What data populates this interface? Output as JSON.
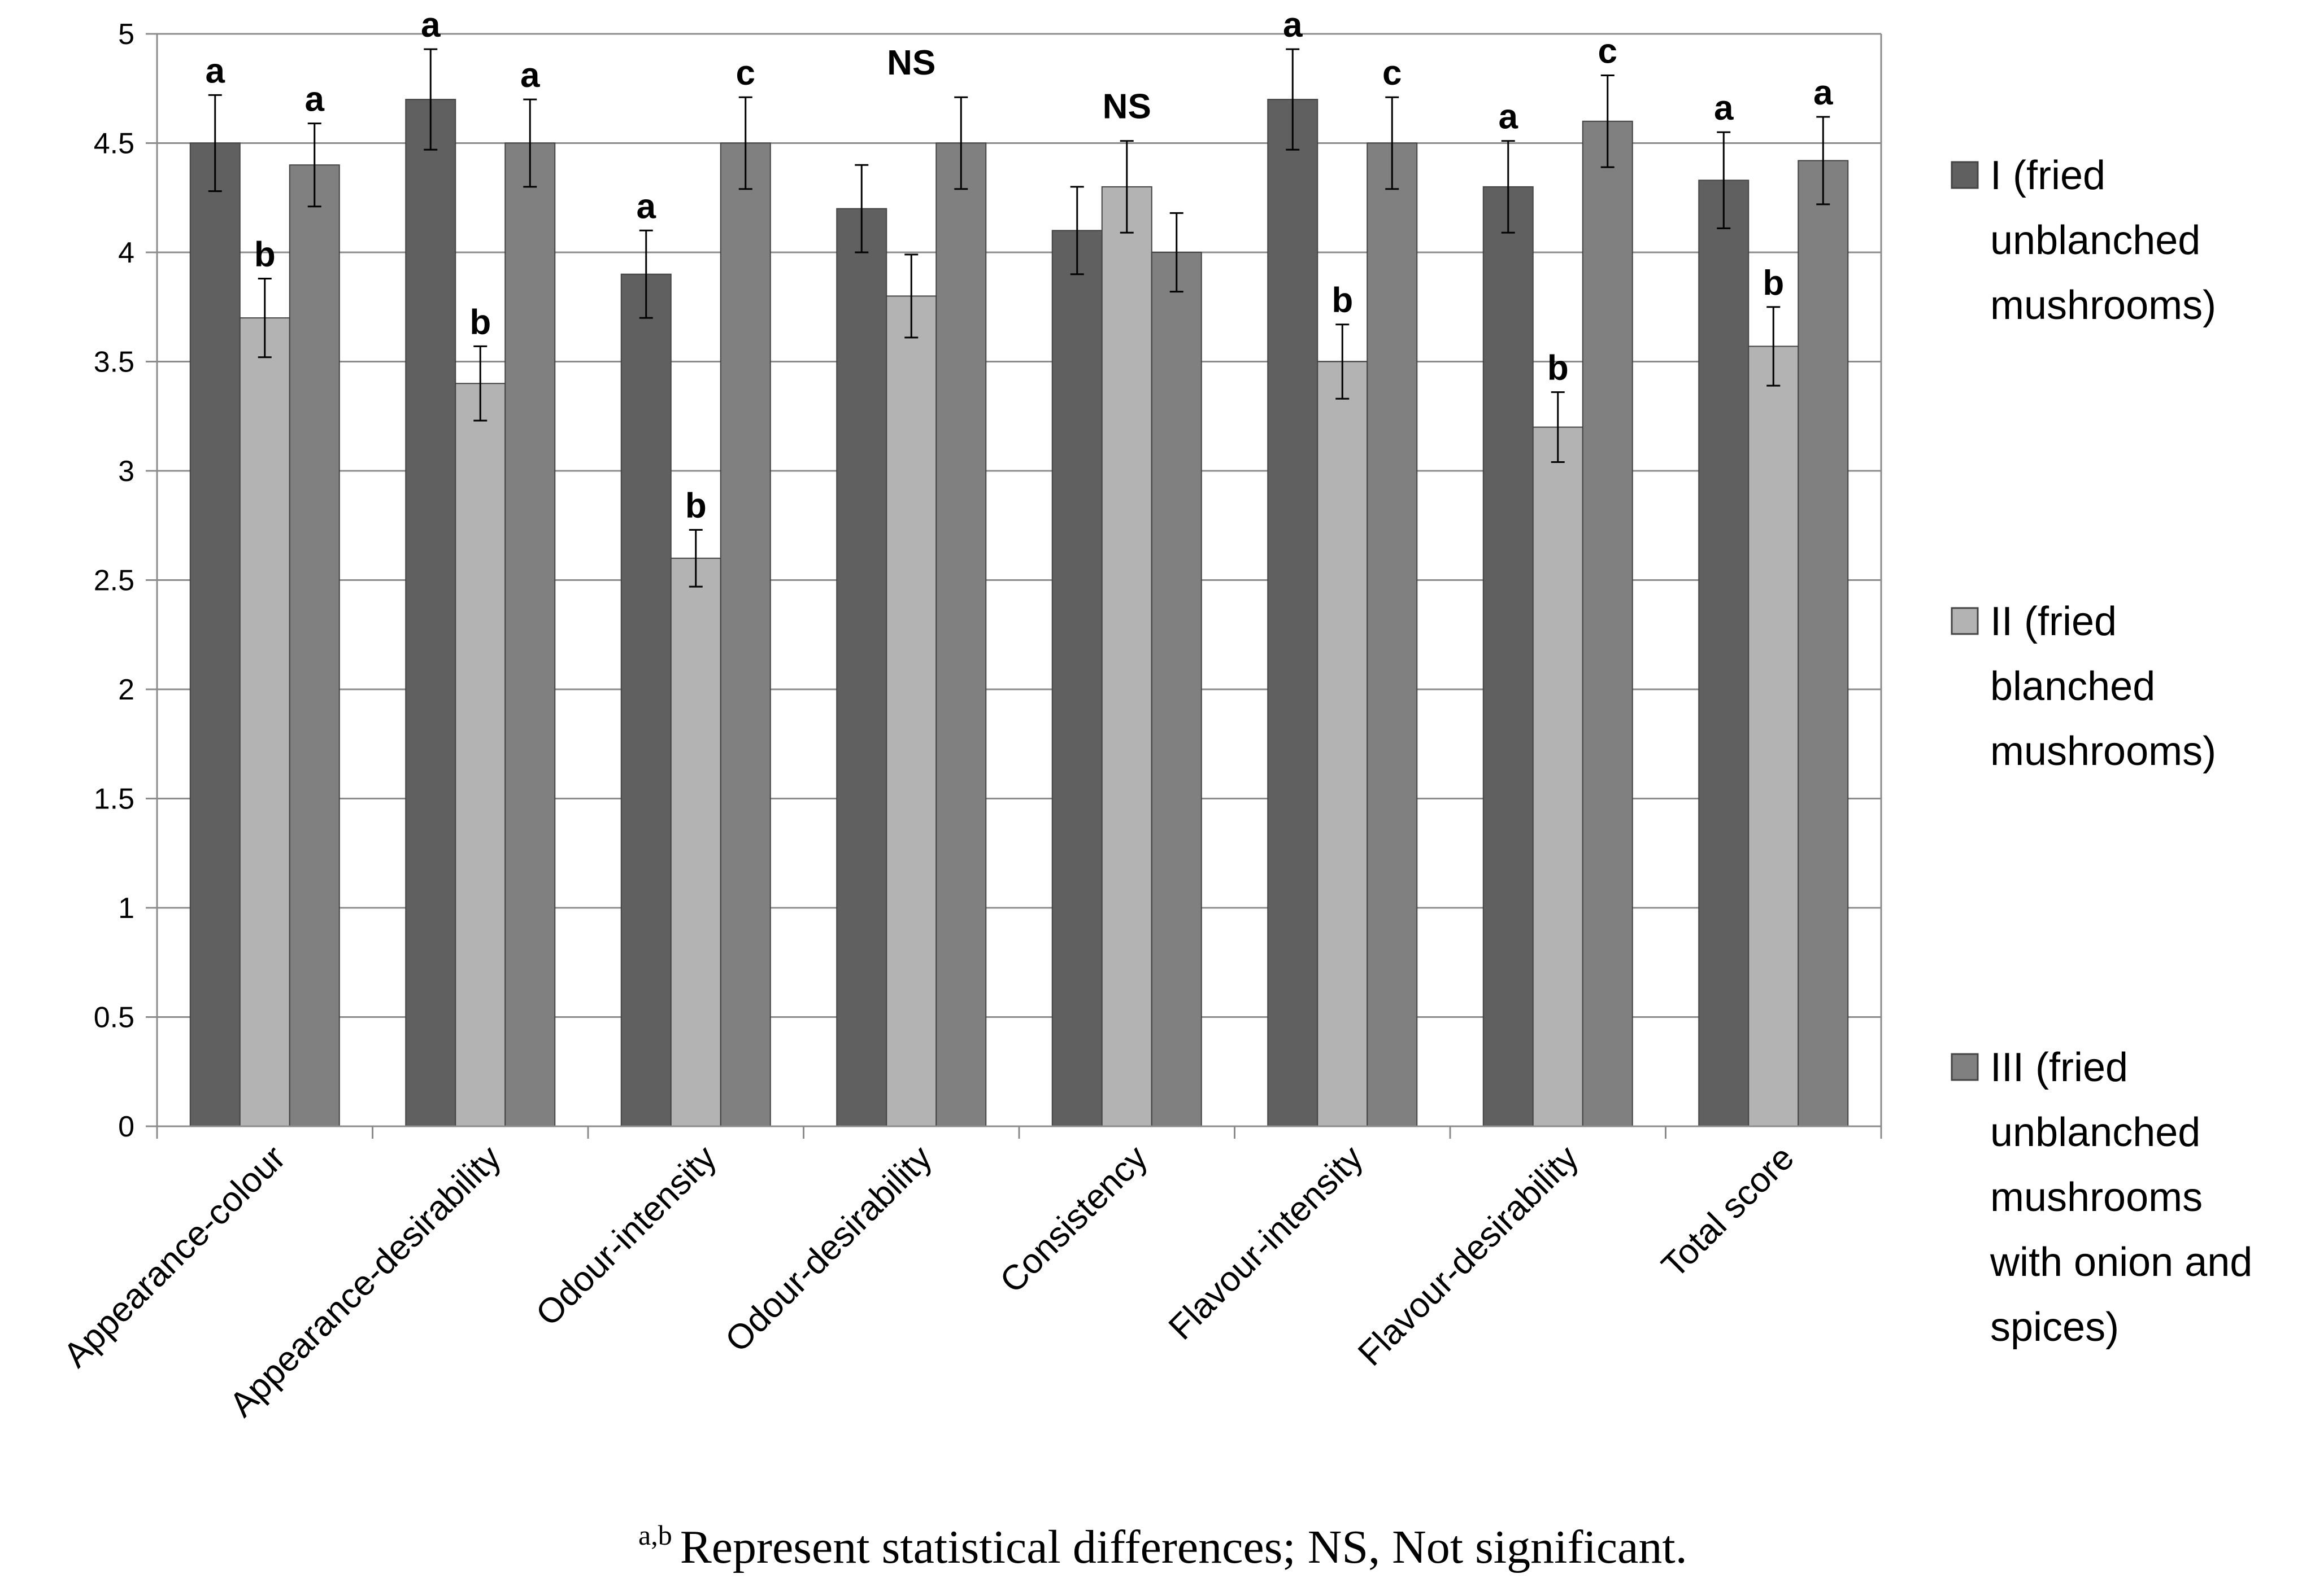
{
  "chart_data": {
    "type": "bar",
    "title": "",
    "xlabel": "",
    "ylabel": "",
    "ylim": [
      0,
      5
    ],
    "ytick_step": 0.5,
    "y_ticks": [
      "0",
      "0.5",
      "1",
      "1.5",
      "2",
      "2.5",
      "3",
      "3.5",
      "4",
      "4.5",
      "5"
    ],
    "grid": true,
    "legend_position": "right",
    "categories": [
      "Appearance-colour",
      "Appearance-desirability",
      "Odour-intensity",
      "Odour-desirability",
      "Consistency",
      "Flavour-intensity",
      "Flavour-desirability",
      "Total score"
    ],
    "series": [
      {
        "name": "I (fried unblanched mushrooms)",
        "legend_lines": [
          "I (fried",
          "unblanched",
          "mushrooms)"
        ],
        "color": "#606060",
        "values": [
          4.5,
          4.7,
          3.9,
          4.2,
          4.1,
          4.7,
          4.3,
          4.33
        ],
        "errors": [
          0.22,
          0.23,
          0.2,
          0.2,
          0.2,
          0.23,
          0.21,
          0.22
        ],
        "labels": [
          "a",
          "a",
          "a",
          "",
          "",
          "a",
          "a",
          "a"
        ]
      },
      {
        "name": "II (fried blanched mushrooms)",
        "legend_lines": [
          "II (fried",
          "blanched",
          "mushrooms)"
        ],
        "color": "#b3b3b3",
        "values": [
          3.7,
          3.4,
          2.6,
          3.8,
          4.3,
          3.5,
          3.2,
          3.57
        ],
        "errors": [
          0.18,
          0.17,
          0.13,
          0.19,
          0.21,
          0.17,
          0.16,
          0.18
        ],
        "labels": [
          "b",
          "b",
          "b",
          "",
          "",
          "b",
          "b",
          "b"
        ]
      },
      {
        "name": "III (fried unblanched mushrooms with onion and spices)",
        "legend_lines": [
          "III (fried",
          "unblanched",
          "mushrooms",
          "with onion and",
          "spices)"
        ],
        "color": "#808080",
        "values": [
          4.4,
          4.5,
          4.5,
          4.5,
          4.0,
          4.5,
          4.6,
          4.42
        ],
        "errors": [
          0.19,
          0.2,
          0.21,
          0.21,
          0.18,
          0.21,
          0.21,
          0.2
        ],
        "labels": [
          "a",
          "a",
          "c",
          "",
          "",
          "c",
          "c",
          "a"
        ]
      }
    ],
    "group_annotations": [
      "",
      "",
      "",
      "NS",
      "NS",
      "",
      "",
      ""
    ],
    "footnote_superscript": "a,b",
    "footnote": "Represent statistical differences; NS, Not significant."
  }
}
